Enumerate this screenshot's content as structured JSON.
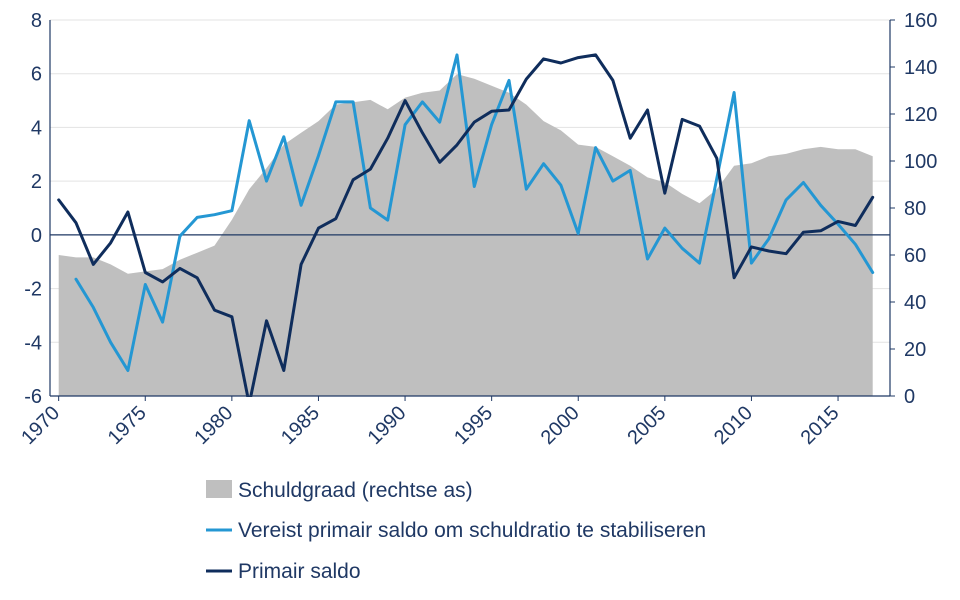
{
  "chart_data": {
    "type": "line",
    "x": [
      1970,
      1971,
      1972,
      1973,
      1974,
      1975,
      1976,
      1977,
      1978,
      1979,
      1980,
      1981,
      1982,
      1983,
      1984,
      1985,
      1986,
      1987,
      1988,
      1989,
      1990,
      1991,
      1992,
      1993,
      1994,
      1995,
      1996,
      1997,
      1998,
      1999,
      2000,
      2001,
      2002,
      2003,
      2004,
      2005,
      2006,
      2007,
      2008,
      2009,
      2010,
      2011,
      2012,
      2013,
      2014,
      2015,
      2016,
      2017
    ],
    "xticks": [
      1970,
      1975,
      1980,
      1985,
      1990,
      1995,
      2000,
      2005,
      2010,
      2015
    ],
    "xlim": [
      1969.5,
      2018
    ],
    "ylim_left": [
      -6,
      8
    ],
    "yticks_left": [
      -6,
      -4,
      -2,
      0,
      2,
      4,
      6,
      8
    ],
    "ylim_right": [
      0,
      160
    ],
    "yticks_right": [
      0,
      20,
      40,
      60,
      80,
      100,
      120,
      140,
      160
    ],
    "series": [
      {
        "name": "Schuldgraad (rechtse as)",
        "kind": "area",
        "axis": "right",
        "color": "#bfbfbf",
        "values": [
          60,
          59,
          59,
          56,
          52,
          53,
          54,
          58,
          61,
          64,
          75,
          88,
          97,
          107,
          112,
          117,
          124,
          125,
          126,
          122,
          127,
          129,
          130,
          137,
          135,
          132,
          129,
          124,
          117,
          113,
          107,
          106,
          102,
          98,
          93,
          91,
          86,
          82,
          88,
          98,
          99,
          102,
          103,
          105,
          106,
          105,
          105,
          102
        ]
      },
      {
        "name": "Vereist primair saldo om schuldratio te stabiliseren",
        "kind": "line",
        "axis": "left",
        "color": "#2497d3",
        "values": [
          null,
          -1.65,
          -2.7,
          -4,
          -5.05,
          -1.85,
          -3.25,
          -0.05,
          0.65,
          0.75,
          0.9,
          4.25,
          2,
          3.65,
          1.1,
          2.95,
          4.95,
          4.95,
          1,
          0.55,
          4.1,
          4.95,
          4.2,
          6.7,
          1.8,
          4.1,
          5.75,
          1.7,
          2.65,
          1.85,
          0.05,
          3.25,
          2,
          2.4,
          -0.9,
          0.25,
          -0.5,
          -1.05,
          2.1,
          5.3,
          -1.05,
          -0.15,
          1.3,
          1.95,
          1.1,
          0.4,
          -0.35,
          -1.4
        ]
      },
      {
        "name": "Primair saldo",
        "kind": "line",
        "axis": "left",
        "color": "#0f2d5c",
        "values": [
          1.3,
          0.45,
          -1.1,
          -0.3,
          0.85,
          -1.4,
          -1.75,
          -1.25,
          -1.6,
          -2.8,
          -3.05,
          -6.3,
          -3.2,
          -5.05,
          -1.1,
          0.25,
          0.6,
          2.05,
          2.45,
          3.6,
          5,
          3.8,
          2.7,
          3.35,
          4.2,
          4.6,
          4.65,
          5.8,
          6.55,
          6.4,
          6.6,
          6.7,
          5.75,
          3.6,
          4.65,
          1.55,
          4.3,
          4.05,
          2.85,
          -1.6,
          -0.45,
          -0.6,
          -0.7,
          0.1,
          0.15,
          0.5,
          0.35,
          1.4
        ]
      }
    ],
    "zero_line": true,
    "grid": "horizontal",
    "legend_position": "bottom"
  }
}
